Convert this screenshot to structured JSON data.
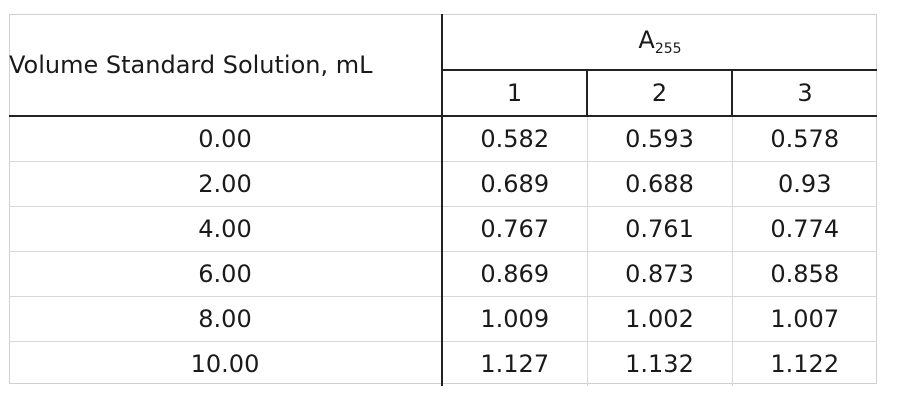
{
  "table": {
    "volume_header": "Volume Standard Solution, mL",
    "absorbance_header": {
      "symbol": "A",
      "subscript": "255"
    },
    "runs": [
      "1",
      "2",
      "3"
    ],
    "rows": [
      {
        "volume": "0.00",
        "values": [
          "0.582",
          "0.593",
          "0.578"
        ]
      },
      {
        "volume": "2.00",
        "values": [
          "0.689",
          "0.688",
          "0.93"
        ]
      },
      {
        "volume": "4.00",
        "values": [
          "0.767",
          "0.761",
          "0.774"
        ]
      },
      {
        "volume": "6.00",
        "values": [
          "0.869",
          "0.873",
          "0.858"
        ]
      },
      {
        "volume": "8.00",
        "values": [
          "1.009",
          "1.002",
          "1.007"
        ]
      },
      {
        "volume": "10.00",
        "values": [
          "1.127",
          "1.132",
          "1.122"
        ]
      }
    ]
  }
}
